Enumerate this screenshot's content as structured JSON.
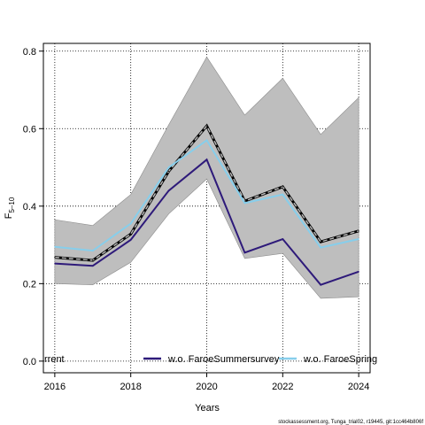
{
  "chart_data": {
    "type": "line",
    "title": "",
    "xlabel": "Years",
    "ylabel_main": "F",
    "ylabel_sub": "5–10",
    "xlim": [
      2015.7,
      2024.3
    ],
    "ylim": [
      -0.03,
      0.82
    ],
    "x_ticks": [
      2016,
      2018,
      2020,
      2022,
      2024
    ],
    "y_ticks": [
      0.0,
      0.2,
      0.4,
      0.6,
      0.8
    ],
    "y_tick_labels": [
      "0.0",
      "0.2",
      "0.4",
      "0.6",
      "0.8"
    ],
    "grid": true,
    "x": [
      2016,
      2017,
      2018,
      2019,
      2020,
      2021,
      2022,
      2023,
      2024
    ],
    "band": {
      "lower": [
        0.2,
        0.197,
        0.255,
        0.38,
        0.47,
        0.265,
        0.278,
        0.162,
        0.166
      ],
      "upper": [
        0.365,
        0.35,
        0.43,
        0.61,
        0.785,
        0.635,
        0.73,
        0.585,
        0.68
      ],
      "color": "#bebebe"
    },
    "series": [
      {
        "name": "rrent",
        "values": [
          0.268,
          0.26,
          0.328,
          0.49,
          0.607,
          0.413,
          0.45,
          0.308,
          0.336
        ],
        "color": "#000000",
        "style": "current"
      },
      {
        "name": "w.o. FaroeSummersurvey",
        "values": [
          0.252,
          0.246,
          0.313,
          0.44,
          0.52,
          0.28,
          0.315,
          0.197,
          0.231
        ],
        "color": "#2e1a7a",
        "style": "solid"
      },
      {
        "name": "w.o. FaroeSpring",
        "values": [
          0.295,
          0.285,
          0.355,
          0.5,
          0.57,
          0.408,
          0.43,
          0.293,
          0.315
        ],
        "color": "#87ceeb",
        "style": "solid"
      }
    ],
    "legend_placement": "bottom"
  },
  "footer_text": "stockassessment.org, Tunga_trial02, r19445, git:1cc464b806f"
}
